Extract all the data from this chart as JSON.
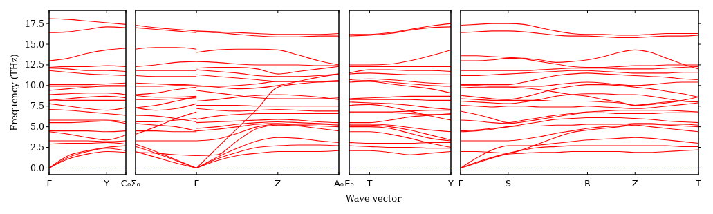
{
  "chart_data": [
    {
      "type": "line",
      "ylabel": "Frequency (THz)",
      "color": "#ff0000",
      "categories": [
        "Γ",
        null,
        null,
        "Y",
        "C₀"
      ],
      "ylim": [
        -0.8,
        19.1
      ],
      "yticks": [
        {
          "value": 0,
          "label": "0.0"
        },
        {
          "value": 2.5,
          "label": "2.5"
        },
        {
          "value": 5,
          "label": "5.0"
        },
        {
          "value": 7.5,
          "label": "7.5"
        },
        {
          "value": 10,
          "label": "10.0"
        },
        {
          "value": 12.5,
          "label": "12.5"
        },
        {
          "value": 15,
          "label": "15.0"
        },
        {
          "value": 17.5,
          "label": "17.5"
        }
      ],
      "ref_lines": [
        {
          "axis": "y",
          "value": 0,
          "color": "#6666ff",
          "line_style": "dotted"
        }
      ],
      "series": [
        {
          "values": [
            0,
            1.1,
            1.7,
            2.0,
            1.9
          ]
        },
        {
          "values": [
            0,
            1.3,
            2.0,
            2.4,
            2.1
          ]
        },
        {
          "values": [
            0,
            1.5,
            2.1,
            2.5,
            2.7
          ]
        },
        {
          "values": [
            2.9,
            3.0,
            3.0,
            3.1,
            2.9
          ]
        },
        {
          "values": [
            3.3,
            3.3,
            3.3,
            3.2,
            3.3
          ]
        },
        {
          "values": [
            4.4,
            4.1,
            3.7,
            3.4,
            4.0
          ]
        },
        {
          "values": [
            4.5,
            4.5,
            4.5,
            4.4,
            4.5
          ]
        },
        {
          "values": [
            5.5,
            5.5,
            5.6,
            5.7,
            5.4
          ]
        },
        {
          "values": [
            5.8,
            5.8,
            5.8,
            5.8,
            5.6
          ]
        },
        {
          "values": [
            7.1,
            7.0,
            6.8,
            6.6,
            6.4
          ]
        },
        {
          "values": [
            7.8,
            7.5,
            7.2,
            7.0,
            7.3
          ]
        },
        {
          "values": [
            8.1,
            8.2,
            8.2,
            8.2,
            8.2
          ]
        },
        {
          "values": [
            8.2,
            8.4,
            8.6,
            8.7,
            8.5
          ]
        },
        {
          "values": [
            8.9,
            9.0,
            9.1,
            9.1,
            8.9
          ]
        },
        {
          "values": [
            9.4,
            9.6,
            9.8,
            9.9,
            9.9
          ]
        },
        {
          "values": [
            9.9,
            9.9,
            9.9,
            10.0,
            10.0
          ]
        },
        {
          "values": [
            10.1,
            10.1,
            10.1,
            10.2,
            10.3
          ]
        },
        {
          "values": [
            11.8,
            11.6,
            11.4,
            11.3,
            11.2
          ]
        },
        {
          "values": [
            12.1,
            12.0,
            11.8,
            11.8,
            11.7
          ]
        },
        {
          "values": [
            12.2,
            12.3,
            12.3,
            12.4,
            12.3
          ]
        },
        {
          "values": [
            13.0,
            13.3,
            13.9,
            14.3,
            14.5
          ]
        },
        {
          "values": [
            16.4,
            16.5,
            16.8,
            17.1,
            17.0
          ]
        },
        {
          "values": [
            18.1,
            18.0,
            17.8,
            17.6,
            17.4
          ]
        }
      ]
    },
    {
      "type": "line",
      "color": "#ff0000",
      "tick_labels": "x",
      "categories": [
        "Σ₀",
        null,
        null,
        "Γ",
        null,
        null,
        null,
        "Z",
        null,
        null,
        "A₀"
      ],
      "ylim": [
        -0.8,
        19.1
      ],
      "ref_lines": [
        {
          "axis": "y",
          "value": 0,
          "color": "#6666ff",
          "line_style": "dotted"
        }
      ],
      "series": [
        {
          "values": [
            2.0,
            1.3,
            0.6,
            0,
            null,
            null,
            null,
            null,
            null,
            null,
            null
          ]
        },
        {
          "values": [
            2.6,
            1.8,
            0.9,
            0,
            null,
            null,
            null,
            null,
            null,
            null,
            null
          ]
        },
        {
          "values": [
            2.9,
            2.0,
            1.0,
            0,
            null,
            null,
            null,
            null,
            null,
            null,
            null
          ]
        },
        {
          "values": [
            1.9,
            1.8,
            1.6,
            1.5,
            null,
            null,
            null,
            null,
            null,
            null,
            null
          ]
        },
        {
          "values": [
            3.3,
            3.3,
            3.3,
            3.3,
            null,
            null,
            null,
            null,
            null,
            null,
            null
          ]
        },
        {
          "values": [
            4.1,
            5.0,
            6.0,
            6.8,
            null,
            null,
            null,
            null,
            null,
            null,
            null
          ]
        },
        {
          "values": [
            4.5,
            4.5,
            4.4,
            4.4,
            null,
            null,
            null,
            null,
            null,
            null,
            null
          ]
        },
        {
          "values": [
            5.4,
            5.2,
            5.0,
            4.5,
            null,
            null,
            null,
            null,
            null,
            null,
            null
          ]
        },
        {
          "values": [
            5.6,
            5.6,
            5.8,
            6.0,
            null,
            null,
            null,
            null,
            null,
            null,
            null
          ]
        },
        {
          "values": [
            6.4,
            6.3,
            6.0,
            5.6,
            null,
            null,
            null,
            null,
            null,
            null,
            null
          ]
        },
        {
          "values": [
            7.3,
            7.6,
            8.1,
            8.6,
            null,
            null,
            null,
            null,
            null,
            null,
            null
          ]
        },
        {
          "values": [
            7.3,
            7.0,
            7.2,
            7.8,
            null,
            null,
            null,
            null,
            null,
            null,
            null
          ]
        },
        {
          "values": [
            8.3,
            8.3,
            8.4,
            8.5,
            null,
            null,
            null,
            null,
            null,
            null,
            null
          ]
        },
        {
          "values": [
            8.8,
            8.6,
            8.6,
            8.7,
            null,
            null,
            null,
            null,
            null,
            null,
            null
          ]
        },
        {
          "values": [
            8.9,
            9.1,
            9.5,
            9.8,
            null,
            null,
            null,
            null,
            null,
            null,
            null
          ]
        },
        {
          "values": [
            9.9,
            9.9,
            10.0,
            10.0,
            null,
            null,
            null,
            null,
            null,
            null,
            null
          ]
        },
        {
          "values": [
            10.3,
            10.2,
            10.1,
            10.2,
            null,
            null,
            null,
            null,
            null,
            null,
            null
          ]
        },
        {
          "values": [
            11.2,
            11.1,
            11.1,
            11.1,
            null,
            null,
            null,
            null,
            null,
            null,
            null
          ]
        },
        {
          "values": [
            11.8,
            11.8,
            11.8,
            11.8,
            null,
            null,
            null,
            null,
            null,
            null,
            null
          ]
        },
        {
          "values": [
            12.3,
            12.5,
            12.8,
            12.9,
            null,
            null,
            null,
            null,
            null,
            null,
            null
          ]
        },
        {
          "values": [
            14.4,
            14.6,
            14.6,
            14.4,
            null,
            null,
            null,
            null,
            null,
            null,
            null
          ]
        },
        {
          "values": [
            17.0,
            16.8,
            16.6,
            16.4,
            null,
            null,
            null,
            null,
            null,
            null,
            null
          ]
        },
        {
          "values": [
            17.3,
            17.0,
            16.8,
            16.6,
            null,
            null,
            null,
            null,
            null,
            null,
            null
          ]
        },
        {
          "values": [
            null,
            null,
            null,
            0,
            0.9,
            1.5,
            1.8,
            2.0,
            2.0,
            2.0,
            2.1
          ]
        },
        {
          "values": [
            null,
            null,
            null,
            0,
            1.1,
            1.9,
            2.5,
            2.7,
            2.8,
            2.8,
            2.7
          ]
        },
        {
          "values": [
            null,
            null,
            null,
            0,
            1.3,
            2.4,
            3.3,
            3.7,
            3.6,
            3.3,
            3.1
          ]
        },
        {
          "values": [
            null,
            null,
            null,
            0,
            2.4,
            4.8,
            7.2,
            9.8,
            10.2,
            10.4,
            10.5
          ]
        },
        {
          "values": [
            null,
            null,
            null,
            1.5,
            1.6,
            3.3,
            4.8,
            5.2,
            5.1,
            4.8,
            4.5
          ]
        },
        {
          "values": [
            null,
            null,
            null,
            3.3,
            3.5,
            4.2,
            5.0,
            5.3,
            5.2,
            5.1,
            5.0
          ]
        },
        {
          "values": [
            null,
            null,
            null,
            4.5,
            4.7,
            5.0,
            5.3,
            5.4,
            5.3,
            5.3,
            5.2
          ]
        },
        {
          "values": [
            null,
            null,
            null,
            4.8,
            5.0,
            5.3,
            5.5,
            5.6,
            5.5,
            5.4,
            5.3
          ]
        },
        {
          "values": [
            null,
            null,
            null,
            5.5,
            5.6,
            5.7,
            5.8,
            5.9,
            5.8,
            5.6,
            5.5
          ]
        },
        {
          "values": [
            null,
            null,
            null,
            5.9,
            6.3,
            6.5,
            6.6,
            6.6,
            6.6,
            6.6,
            6.6
          ]
        },
        {
          "values": [
            null,
            null,
            null,
            7.2,
            7.0,
            6.9,
            7.0,
            7.1,
            7.0,
            6.9,
            6.9
          ]
        },
        {
          "values": [
            null,
            null,
            null,
            7.6,
            7.6,
            7.6,
            7.5,
            7.5,
            7.5,
            7.5,
            7.5
          ]
        },
        {
          "values": [
            null,
            null,
            null,
            8.1,
            8.3,
            8.6,
            8.8,
            8.9,
            8.8,
            8.6,
            8.3
          ]
        },
        {
          "values": [
            null,
            null,
            null,
            9.4,
            9.1,
            8.8,
            8.5,
            8.4,
            8.4,
            8.4,
            8.5
          ]
        },
        {
          "values": [
            null,
            null,
            null,
            9.9,
            9.9,
            10.0,
            10.2,
            10.5,
            10.5,
            10.5,
            10.6
          ]
        },
        {
          "values": [
            null,
            null,
            null,
            10.0,
            9.8,
            9.6,
            9.7,
            10.0,
            10.5,
            11.0,
            11.4
          ]
        },
        {
          "values": [
            null,
            null,
            null,
            11.3,
            11.1,
            10.9,
            10.7,
            10.5,
            10.5,
            10.5,
            10.5
          ]
        },
        {
          "values": [
            null,
            null,
            null,
            11.9,
            11.7,
            11.5,
            11.2,
            11.1,
            11.1,
            11.2,
            11.4
          ]
        },
        {
          "values": [
            null,
            null,
            null,
            12.1,
            12.2,
            12.2,
            12.0,
            11.4,
            11.7,
            12.0,
            12.3
          ]
        },
        {
          "values": [
            null,
            null,
            null,
            12.9,
            12.8,
            12.6,
            12.5,
            12.5,
            12.5,
            12.4,
            12.4
          ]
        },
        {
          "values": [
            null,
            null,
            null,
            14.0,
            14.3,
            14.4,
            14.4,
            14.3,
            13.7,
            13.0,
            12.5
          ]
        },
        {
          "values": [
            null,
            null,
            null,
            16.5,
            16.4,
            16.2,
            16.0,
            15.9,
            15.9,
            16.0,
            16.0
          ]
        },
        {
          "values": [
            null,
            null,
            null,
            16.6,
            16.5,
            16.4,
            16.3,
            16.2,
            16.2,
            16.2,
            16.3
          ]
        }
      ]
    },
    {
      "type": "line",
      "xlabel": "Wave vector",
      "color": "#ff0000",
      "tick_labels": "x",
      "categories": [
        "E₀",
        "T",
        null,
        null,
        null,
        "Y"
      ],
      "ylim": [
        -0.8,
        19.1
      ],
      "ref_lines": [
        {
          "axis": "y",
          "value": 0,
          "color": "#6666ff",
          "line_style": "dotted"
        }
      ],
      "series": [
        {
          "values": [
            2.1,
            2.1,
            1.9,
            1.6,
            1.8,
            2.0
          ]
        },
        {
          "values": [
            2.7,
            2.6,
            2.5,
            2.5,
            2.4,
            2.4
          ]
        },
        {
          "values": [
            3.1,
            3.0,
            3.0,
            3.0,
            3.1,
            3.1
          ]
        },
        {
          "values": [
            4.4,
            4.4,
            4.1,
            3.6,
            3.0,
            2.5
          ]
        },
        {
          "values": [
            5.0,
            5.0,
            4.8,
            4.2,
            3.6,
            3.3
          ]
        },
        {
          "values": [
            5.2,
            5.2,
            5.0,
            4.6,
            4.0,
            3.4
          ]
        },
        {
          "values": [
            5.3,
            5.3,
            5.2,
            4.9,
            4.6,
            4.4
          ]
        },
        {
          "values": [
            5.5,
            5.5,
            5.8,
            6.2,
            6.4,
            6.6
          ]
        },
        {
          "values": [
            6.7,
            6.7,
            6.7,
            6.6,
            6.5,
            6.5
          ]
        },
        {
          "values": [
            6.8,
            6.8,
            6.8,
            6.9,
            7.0,
            7.0
          ]
        },
        {
          "values": [
            7.6,
            7.7,
            7.4,
            6.9,
            6.3,
            5.8
          ]
        },
        {
          "values": [
            8.0,
            7.9,
            7.8,
            7.6,
            7.3,
            7.1
          ]
        },
        {
          "values": [
            8.3,
            8.3,
            8.3,
            8.3,
            8.2,
            8.2
          ]
        },
        {
          "values": [
            8.4,
            8.5,
            8.6,
            8.7,
            8.7,
            8.7
          ]
        },
        {
          "values": [
            10.4,
            10.5,
            10.2,
            9.9,
            9.6,
            9.1
          ]
        },
        {
          "values": [
            10.5,
            10.6,
            10.4,
            10.2,
            10.0,
            9.9
          ]
        },
        {
          "values": [
            10.7,
            10.8,
            10.7,
            10.5,
            10.3,
            10.2
          ]
        },
        {
          "values": [
            11.4,
            11.5,
            11.4,
            11.3,
            11.3,
            11.3
          ]
        },
        {
          "values": [
            11.5,
            11.9,
            11.9,
            11.8,
            11.8,
            11.7
          ]
        },
        {
          "values": [
            12.3,
            12.3,
            12.3,
            12.3,
            12.3,
            12.3
          ]
        },
        {
          "values": [
            12.5,
            12.5,
            12.6,
            13.0,
            13.6,
            14.3
          ]
        },
        {
          "values": [
            16.0,
            16.1,
            16.3,
            16.7,
            17.0,
            17.1
          ]
        },
        {
          "values": [
            16.2,
            16.2,
            16.4,
            16.8,
            17.2,
            17.5
          ]
        }
      ]
    },
    {
      "type": "line",
      "color": "#ff0000",
      "tick_labels": "x",
      "categories": [
        "Γ",
        null,
        null,
        "S",
        null,
        null,
        null,
        null,
        "R",
        null,
        null,
        "Z",
        null,
        null,
        null,
        "T"
      ],
      "ylim": [
        -0.8,
        19.1
      ],
      "yticks": [
        {
          "value": 0,
          "label": null
        },
        {
          "value": 2.5,
          "label": null
        },
        {
          "value": 5,
          "label": null
        },
        {
          "value": 7.5,
          "label": null
        },
        {
          "value": 10,
          "label": null
        },
        {
          "value": 12.5,
          "label": null
        },
        {
          "value": 15,
          "label": null
        },
        {
          "value": 17.5,
          "label": null
        }
      ],
      "ref_lines": [
        {
          "axis": "y",
          "value": 0,
          "color": "#6666ff",
          "line_style": "dotted"
        }
      ],
      "series": [
        {
          "values": [
            0,
            0.6,
            1.2,
            1.7,
            1.8,
            1.9,
            1.9,
            2.0,
            2.0,
            2.0,
            2.0,
            1.9,
            1.9,
            2.0,
            2.1,
            2.2
          ]
        },
        {
          "values": [
            0,
            0.7,
            1.3,
            1.8,
            2.2,
            2.5,
            2.6,
            2.7,
            2.7,
            2.7,
            2.7,
            2.7,
            2.7,
            2.7,
            2.6,
            2.6
          ]
        },
        {
          "values": [
            0,
            1.2,
            2.2,
            2.7,
            2.7,
            2.8,
            3.0,
            3.2,
            3.4,
            3.5,
            3.6,
            3.7,
            3.6,
            3.4,
            3.2,
            3.0
          ]
        },
        {
          "values": [
            2.0,
            2.0,
            1.9,
            1.8,
            2.3,
            3.0,
            3.7,
            4.3,
            4.6,
            4.8,
            5.0,
            5.2,
            5.0,
            4.8,
            4.6,
            4.4
          ]
        },
        {
          "values": [
            3.3,
            3.3,
            3.3,
            3.3,
            3.5,
            3.8,
            4.2,
            4.5,
            4.8,
            5.0,
            5.1,
            5.3,
            5.3,
            5.2,
            5.1,
            5.0
          ]
        },
        {
          "values": [
            4.4,
            4.5,
            4.7,
            5.0,
            5.1,
            5.1,
            5.2,
            5.2,
            5.3,
            5.3,
            5.3,
            5.4,
            5.4,
            5.3,
            5.3,
            5.2
          ]
        },
        {
          "values": [
            4.5,
            4.6,
            4.8,
            5.0,
            5.3,
            5.6,
            5.9,
            6.0,
            6.1,
            6.1,
            6.1,
            6.0,
            5.9,
            5.7,
            5.6,
            5.5
          ]
        },
        {
          "values": [
            5.8,
            5.7,
            5.5,
            5.4,
            5.6,
            5.9,
            6.2,
            6.5,
            6.7,
            6.7,
            6.6,
            6.6,
            6.6,
            6.7,
            6.7,
            6.7
          ]
        },
        {
          "values": [
            6.9,
            6.5,
            6.0,
            5.5,
            5.8,
            6.1,
            6.4,
            6.6,
            6.8,
            6.9,
            7.0,
            7.0,
            7.0,
            7.0,
            6.9,
            6.8
          ]
        },
        {
          "values": [
            7.6,
            7.5,
            7.4,
            7.5,
            7.5,
            7.4,
            7.4,
            7.4,
            7.5,
            7.4,
            7.3,
            7.2,
            7.3,
            7.5,
            7.7,
            7.9
          ]
        },
        {
          "values": [
            8.1,
            8.0,
            7.9,
            7.8,
            8.0,
            8.3,
            8.7,
            8.9,
            9.0,
            9.0,
            8.9,
            8.9,
            8.7,
            8.4,
            8.1,
            8.0
          ]
        },
        {
          "values": [
            8.4,
            8.3,
            8.2,
            8.2,
            8.2,
            8.2,
            8.1,
            8.1,
            8.1,
            8.0,
            7.9,
            7.6,
            7.7,
            7.9,
            8.2,
            8.6
          ]
        },
        {
          "values": [
            8.8,
            8.6,
            8.4,
            8.3,
            8.6,
            9.1,
            9.6,
            9.9,
            10.1,
            10.1,
            10.0,
            9.8,
            9.6,
            9.3,
            9.0,
            8.6
          ]
        },
        {
          "values": [
            9.7,
            9.8,
            9.8,
            9.8,
            9.7,
            9.5,
            9.2,
            8.9,
            8.7,
            8.3,
            8.0,
            7.6,
            7.8,
            8.0,
            8.1,
            8.0
          ]
        },
        {
          "values": [
            10.0,
            10.0,
            9.9,
            9.9,
            9.9,
            9.9,
            10.1,
            10.3,
            10.4,
            10.3,
            10.1,
            10.0,
            10.1,
            10.3,
            10.4,
            10.4
          ]
        },
        {
          "values": [
            10.1,
            10.1,
            10.1,
            10.1,
            10.4,
            10.8,
            11.2,
            11.4,
            11.5,
            11.4,
            11.3,
            11.2,
            11.1,
            11.0,
            10.8,
            10.7
          ]
        },
        {
          "values": [
            11.2,
            11.2,
            11.3,
            11.4,
            11.5,
            11.6,
            11.7,
            11.8,
            11.8,
            11.7,
            11.6,
            11.5,
            11.5,
            11.5,
            11.6,
            11.6
          ]
        },
        {
          "values": [
            11.8,
            11.8,
            11.8,
            11.8,
            11.8,
            11.9,
            12.0,
            12.1,
            12.1,
            12.1,
            12.0,
            12.0,
            12.0,
            12.1,
            12.2,
            12.3
          ]
        },
        {
          "values": [
            13.0,
            13.0,
            13.1,
            13.3,
            13.2,
            12.9,
            12.6,
            12.3,
            12.2,
            12.2,
            12.3,
            12.4,
            12.4,
            12.5,
            12.5,
            12.5
          ]
        },
        {
          "values": [
            13.6,
            13.6,
            13.5,
            13.4,
            13.3,
            13.1,
            12.8,
            12.9,
            13.1,
            13.5,
            14.0,
            14.3,
            14.0,
            13.3,
            12.6,
            12.0
          ]
        },
        {
          "values": [
            16.4,
            16.5,
            16.6,
            16.6,
            16.5,
            16.3,
            16.1,
            16.0,
            16.0,
            15.9,
            15.8,
            15.8,
            15.9,
            16.0,
            16.0,
            16.1
          ]
        },
        {
          "values": [
            17.3,
            17.4,
            17.5,
            17.5,
            17.4,
            17.0,
            16.6,
            16.3,
            16.2,
            16.2,
            16.1,
            16.1,
            16.2,
            16.3,
            16.3,
            16.3
          ]
        }
      ]
    }
  ]
}
